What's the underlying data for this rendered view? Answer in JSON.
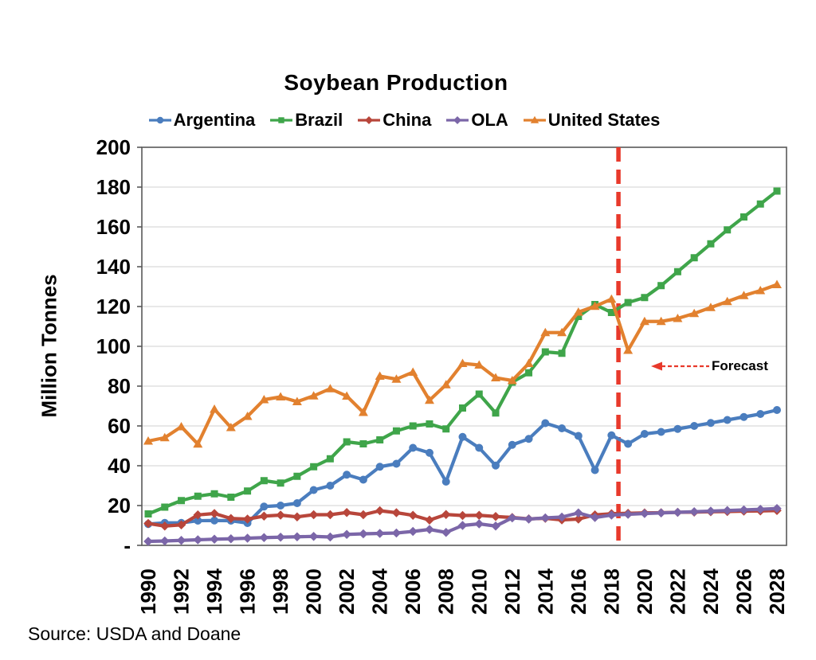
{
  "title": "Soybean Production",
  "source_note": "Source: USDA and Doane",
  "y_axis": {
    "title": "Million Tonnes",
    "tick_labels": [
      "200",
      "180",
      "160",
      "140",
      "120",
      "100",
      "80",
      "60",
      "40",
      "20",
      "-"
    ],
    "min": 0,
    "max": 200,
    "step": 20
  },
  "x_axis": {
    "tick_labels": [
      "1990",
      "1992",
      "1994",
      "1996",
      "1998",
      "2000",
      "2002",
      "2004",
      "2006",
      "2008",
      "2010",
      "2012",
      "2014",
      "2016",
      "2018",
      "2020",
      "2022",
      "2024",
      "2026",
      "2028"
    ]
  },
  "forecast": {
    "label": "Forecast",
    "divider_year": 2018.42,
    "accent_color": "#e8392b"
  },
  "chart_data": {
    "type": "line",
    "title": "Soybean Production",
    "ylabel": "Million Tonnes",
    "ylim": [
      0,
      200
    ],
    "grid": true,
    "legend_position": "top",
    "x": [
      1990,
      1991,
      1992,
      1993,
      1994,
      1995,
      1996,
      1997,
      1998,
      1999,
      2000,
      2001,
      2002,
      2003,
      2004,
      2005,
      2006,
      2007,
      2008,
      2009,
      2010,
      2011,
      2012,
      2013,
      2014,
      2015,
      2016,
      2017,
      2018,
      2019,
      2020,
      2021,
      2022,
      2023,
      2024,
      2025,
      2026,
      2027,
      2028
    ],
    "series": [
      {
        "name": "Argentina",
        "color": "#4a7dbe",
        "marker": "circle",
        "values": [
          10.7,
          11.3,
          11.3,
          12.4,
          12.5,
          12.4,
          11.2,
          19.5,
          20,
          21.2,
          27.8,
          30,
          35.5,
          33,
          39.5,
          41,
          49,
          46.5,
          32,
          54.5,
          49,
          40.1,
          50.5,
          53.5,
          61.4,
          58.8,
          55,
          37.8,
          55.3,
          51,
          56,
          57,
          58.5,
          60,
          61.5,
          63,
          64.5,
          66,
          68
        ]
      },
      {
        "name": "Brazil",
        "color": "#3fa54a",
        "marker": "square",
        "values": [
          15.8,
          19.2,
          22.5,
          24.7,
          25.9,
          24.2,
          27.3,
          32.5,
          31.3,
          34.7,
          39.5,
          43.5,
          52,
          51,
          53,
          57.5,
          60,
          61,
          58.5,
          69,
          76,
          66.5,
          82,
          86.7,
          97.2,
          96.5,
          115,
          121,
          117,
          122,
          124.5,
          130.5,
          137.5,
          144.5,
          151.5,
          158.5,
          165,
          171.5,
          178
        ]
      },
      {
        "name": "China",
        "color": "#b8463b",
        "marker": "diamond",
        "values": [
          11,
          9.7,
          10.3,
          15.3,
          16,
          13.5,
          13.2,
          14.7,
          15.2,
          14.3,
          15.4,
          15.4,
          16.5,
          15.4,
          17.4,
          16.4,
          15.1,
          12.7,
          15.5,
          15,
          15.1,
          14.5,
          14,
          13.3,
          13.6,
          12.8,
          13.2,
          15.3,
          15.9,
          16.1,
          16.3,
          16.4,
          16.6,
          16.7,
          16.9,
          17,
          17.2,
          17.3,
          17.5
        ]
      },
      {
        "name": "OLA",
        "color": "#7b66a8",
        "marker": "diamond",
        "values": [
          2,
          2.2,
          2.5,
          2.8,
          3.1,
          3.3,
          3.6,
          3.9,
          4.1,
          4.3,
          4.5,
          4.2,
          5.5,
          5.8,
          6,
          6.2,
          7,
          8,
          6.5,
          10,
          10.8,
          9.7,
          13.8,
          13.2,
          13.8,
          14.2,
          16.3,
          14,
          15.2,
          15.6,
          16,
          16.3,
          16.6,
          16.9,
          17.2,
          17.5,
          17.8,
          18.1,
          18.5
        ]
      },
      {
        "name": "United States",
        "color": "#e2812f",
        "marker": "triangle",
        "values": [
          52.4,
          54.1,
          59.6,
          50.9,
          68.4,
          59.2,
          64.8,
          73.2,
          74.6,
          72.2,
          75.1,
          78.7,
          75,
          66.8,
          85,
          83.5,
          87,
          72.9,
          80.7,
          91.4,
          90.6,
          84.2,
          82.8,
          91.4,
          106.9,
          106.9,
          117.2,
          120.1,
          123.7,
          98,
          112.5,
          112.5,
          114,
          116.5,
          119.5,
          122.5,
          125.5,
          128,
          131
        ]
      }
    ],
    "annotations": {
      "forecast_divider_x": 2018.42,
      "forecast_text": "Forecast",
      "forecast_arrow_y": 90
    }
  }
}
